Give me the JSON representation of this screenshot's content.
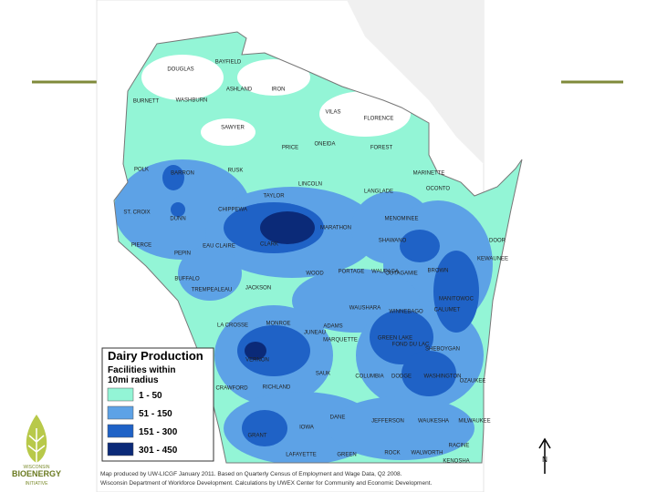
{
  "legend": {
    "title": "Dairy Production",
    "subtitle": [
      "Facilities within",
      "10mi radius"
    ],
    "items": [
      {
        "label": "1 - 50",
        "color": "#93f5d6"
      },
      {
        "label": "51 - 150",
        "color": "#5da2e6"
      },
      {
        "label": "151 - 300",
        "color": "#1f62c6"
      },
      {
        "label": "301 - 450",
        "color": "#0b2a78"
      }
    ]
  },
  "counties": [
    "DOUGLAS",
    "BAYFIELD",
    "ASHLAND",
    "IRON",
    "VILAS",
    "FLORENCE",
    "BURNETT",
    "WASHBURN",
    "SAWYER",
    "PRICE",
    "ONEIDA",
    "FOREST",
    "MARINETTE",
    "POLK",
    "BARRON",
    "RUSK",
    "LINCOLN",
    "LANGLADE",
    "OCONTO",
    "TAYLOR",
    "ST. CROIX",
    "DUNN",
    "CHIPPEWA",
    "MARATHON",
    "MENOMINEE",
    "SHAWANO",
    "DOOR",
    "PIERCE",
    "PEPIN",
    "EAU CLAIRE",
    "CLARK",
    "KEWAUNEE",
    "OUTAGAMIE",
    "BROWN",
    "WOOD",
    "PORTAGE",
    "WAUPACA",
    "BUFFALO",
    "TREMPEALEAU",
    "JACKSON",
    "MANITOWOC",
    "WINNEBAGO",
    "CALUMET",
    "WAUSHARA",
    "LA CROSSE",
    "MONROE",
    "JUNEAU",
    "ADAMS",
    "MARQUETTE",
    "GREEN LAKE",
    "FOND DU LAC",
    "SHEBOYGAN",
    "VERNON",
    "SAUK",
    "COLUMBIA",
    "DODGE",
    "WASHINGTON",
    "OZAUKEE",
    "CRAWFORD",
    "RICHLAND",
    "DANE",
    "JEFFERSON",
    "WAUKESHA",
    "MILWAUKEE",
    "GRANT",
    "IOWA",
    "RACINE",
    "LAFAYETTE",
    "GREEN",
    "ROCK",
    "WALWORTH",
    "KENOSHA"
  ],
  "credit": [
    "Map produced by UW-LICGF January 2011. Based on Quarterly Census of Employment and Wage Data, Q2 2008.",
    "Wisconsin Department of Workforce Development. Calculations by UWEX Center for Community and Economic Development."
  ],
  "logo": [
    "WISCONSIN",
    "BIOENERGY",
    "INITIATIVE"
  ]
}
